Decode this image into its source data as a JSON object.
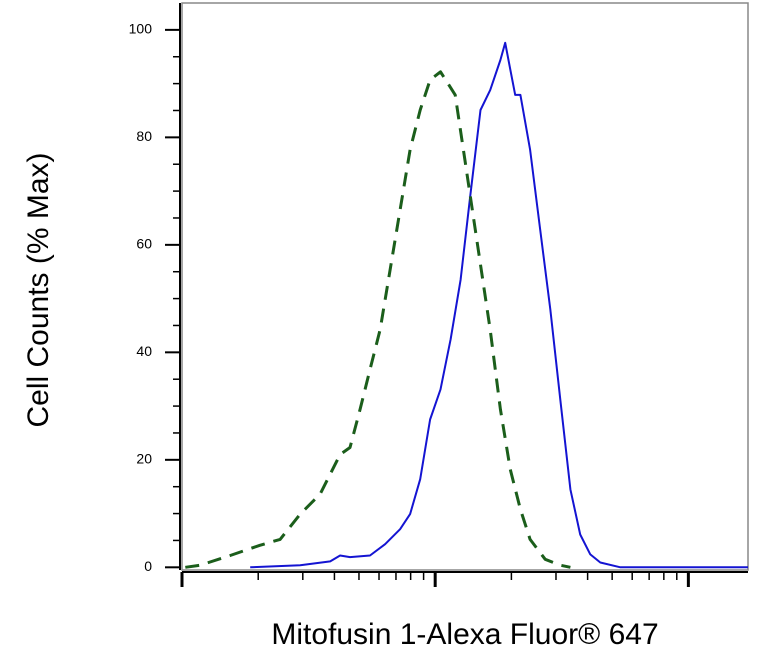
{
  "chart_data": {
    "type": "line",
    "xlabel": "Mitofusin 1-Alexa Fluor® 647",
    "ylabel": "Cell Counts (% Max)",
    "xscale": "log",
    "xlim": [
      1,
      172
    ],
    "xticks": [
      1,
      10,
      100
    ],
    "xminorticks": [
      2,
      3,
      4,
      5,
      6,
      7,
      8,
      9,
      20,
      30,
      40,
      50,
      60,
      70,
      80,
      90
    ],
    "ylim": [
      -0.5,
      105
    ],
    "yticks": [
      0,
      20,
      40,
      60,
      80,
      100
    ],
    "yminorticks": [
      5,
      10,
      15,
      25,
      30,
      35,
      45,
      50,
      55,
      65,
      70,
      75,
      85,
      90,
      95
    ],
    "series": [
      {
        "color": "#1414d2",
        "dash": false,
        "x": [
          1.86,
          2.93,
          3.85,
          4.21,
          4.61,
          5.53,
          6.34,
          7.27,
          7.96,
          8.73,
          9.55,
          10.5,
          11.5,
          12.6,
          13.7,
          15.1,
          16.5,
          18.1,
          18.9,
          19.8,
          20.7,
          21.7,
          23.7,
          26.0,
          28.5,
          31.2,
          34.2,
          37.4,
          41.0,
          44.9,
          53.9,
          172
        ],
        "values": [
          0,
          0.4,
          1.1,
          2.2,
          1.9,
          2.2,
          4.3,
          7.1,
          9.9,
          16.4,
          27.5,
          33.1,
          42.4,
          53.5,
          68.4,
          85.1,
          88.8,
          94.4,
          97.6,
          92.6,
          87.9,
          87.9,
          77.7,
          62.8,
          48.0,
          31.2,
          14.5,
          6.1,
          2.4,
          0.9,
          0,
          0
        ]
      },
      {
        "color": "#1b5e1b",
        "dash": true,
        "x": [
          1.03,
          1.18,
          1.55,
          2.03,
          2.44,
          2.93,
          3.51,
          4.21,
          4.61,
          5.05,
          5.53,
          6.06,
          7.27,
          7.96,
          8.73,
          9.55,
          10.5,
          12.0,
          13.1,
          14.4,
          16.5,
          18.1,
          19.8,
          21.7,
          23.7,
          27.2,
          31.2,
          34.2
        ],
        "values": [
          0,
          0.4,
          2.2,
          4.1,
          5.2,
          9.9,
          13.6,
          21.0,
          22.3,
          29.4,
          36.8,
          44.2,
          66.5,
          77.7,
          85.1,
          90.7,
          92.2,
          87.9,
          75.8,
          62.8,
          44.2,
          29.4,
          18.2,
          10.8,
          5.2,
          1.5,
          0.4,
          0
        ]
      }
    ]
  }
}
